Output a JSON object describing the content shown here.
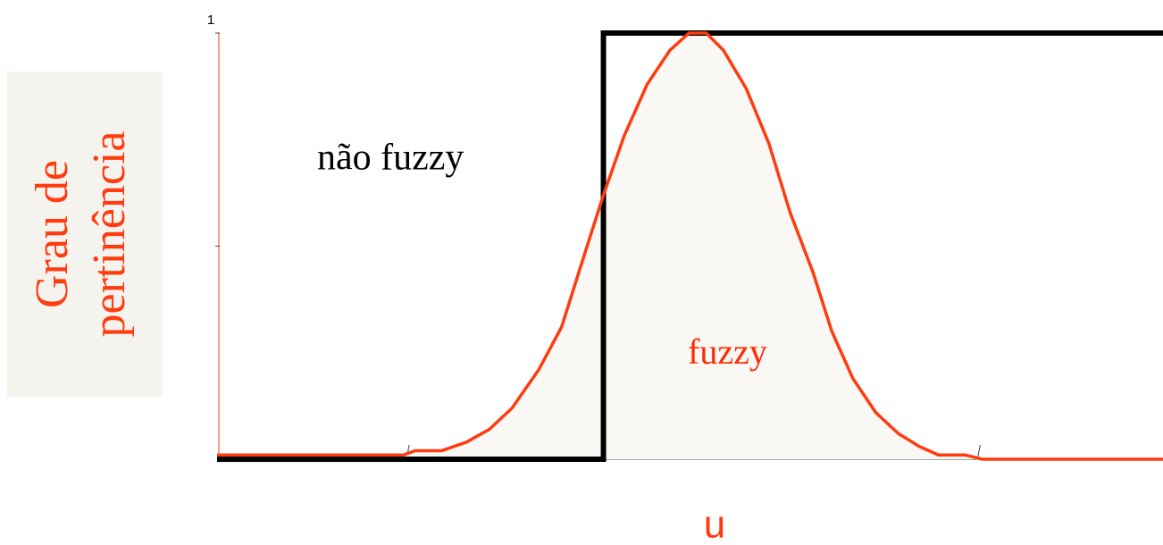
{
  "chart_data": {
    "type": "line",
    "y_label": [
      "Grau de",
      "pertinência"
    ],
    "x_label": "u",
    "xlim": [
      0,
      4.97
    ],
    "ylim": [
      0,
      1
    ],
    "xticks": [
      {
        "value": 1,
        "label": null
      },
      {
        "value": 2,
        "label": null
      },
      {
        "value": 3,
        "label": null
      },
      {
        "value": 4,
        "label": null
      }
    ],
    "yticks": [
      {
        "value": 0.5,
        "label": null
      },
      1
    ],
    "series": [
      {
        "color": "#000000",
        "x": [
          0,
          2.03,
          2.03,
          4.97
        ],
        "values": [
          0,
          0,
          1,
          1
        ]
      },
      {
        "color": "#ff3b0f",
        "fill": "#f9f8f4",
        "x": [
          0,
          0.98,
          1.04,
          1.18,
          1.31,
          1.43,
          1.55,
          1.69,
          1.81,
          1.93,
          2.03,
          2.14,
          2.26,
          2.38,
          2.48,
          2.57,
          2.66,
          2.78,
          2.9,
          3.01,
          3.13,
          3.23,
          3.34,
          3.46,
          3.58,
          3.69,
          3.79,
          3.93,
          4.02,
          4.97
        ],
        "values": [
          0.01,
          0.01,
          0.02,
          0.02,
          0.04,
          0.07,
          0.12,
          0.21,
          0.31,
          0.48,
          0.62,
          0.76,
          0.88,
          0.96,
          1,
          1,
          0.96,
          0.87,
          0.74,
          0.58,
          0.44,
          0.3,
          0.19,
          0.11,
          0.06,
          0.03,
          0.01,
          0.01,
          0,
          0
        ]
      }
    ],
    "annotations": [
      {
        "text": "não fuzzy",
        "color": "#000000"
      },
      {
        "text": "fuzzy",
        "color": "#ff2a00"
      }
    ]
  }
}
